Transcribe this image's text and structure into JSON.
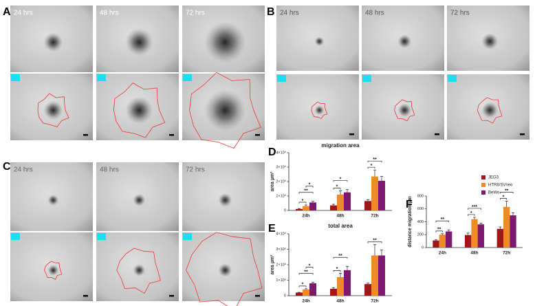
{
  "panels": [
    {
      "letter": "A",
      "labels": [
        "24 hrs",
        "48 hrs",
        "72 hrs"
      ]
    },
    {
      "letter": "B",
      "labels": [
        "24 hrs",
        "48 hrs",
        "72 hrs"
      ]
    },
    {
      "letter": "C",
      "labels": [
        "24 hrs",
        "48 hrs",
        "72 hrs"
      ]
    }
  ],
  "chart_data": [
    {
      "type": "bar",
      "panel": "D",
      "title": "migration area",
      "ylabel": "area µm²",
      "categories": [
        "24h",
        "48h",
        "72h"
      ],
      "ylim": [
        0,
        4000000
      ],
      "yticks": [
        0,
        {
          "value": 1000000,
          "label": "1×10⁶"
        },
        {
          "value": 2000000,
          "label": "2×10⁶"
        },
        {
          "value": 3000000,
          "label": "3×10⁶"
        },
        {
          "value": 4000000,
          "label": "4×10⁶"
        }
      ],
      "series": [
        {
          "color": "#a3171b",
          "values": [
            100000,
            350000,
            650000
          ],
          "errors": [
            30000,
            80000,
            100000
          ]
        },
        {
          "color": "#f08a24",
          "values": [
            300000,
            1100000,
            2350000
          ],
          "errors": [
            80000,
            250000,
            450000
          ]
        },
        {
          "color": "#7d1a70",
          "values": [
            550000,
            1250000,
            2050000
          ],
          "errors": [
            80000,
            200000,
            300000
          ]
        }
      ],
      "annotations": [
        {
          "category": 0,
          "pair": [
            0,
            1
          ],
          "text": "*"
        },
        {
          "category": 0,
          "pair": [
            0,
            2
          ],
          "text": "**"
        },
        {
          "category": 0,
          "pair": [
            1,
            2
          ],
          "text": "*"
        },
        {
          "category": 1,
          "pair": [
            0,
            1
          ],
          "text": "*"
        },
        {
          "category": 1,
          "pair": [
            0,
            2
          ],
          "text": "*"
        },
        {
          "category": 2,
          "pair": [
            0,
            1
          ],
          "text": "*"
        },
        {
          "category": 2,
          "pair": [
            0,
            2
          ],
          "text": "**"
        }
      ]
    },
    {
      "type": "bar",
      "panel": "E",
      "title": "total area",
      "ylabel": "area µm²",
      "categories": [
        "24h",
        "48h",
        "72h"
      ],
      "ylim": [
        0,
        4000000
      ],
      "yticks": [
        0,
        {
          "value": 1000000,
          "label": "1×10⁶"
        },
        {
          "value": 2000000,
          "label": "2×10⁶"
        },
        {
          "value": 3000000,
          "label": "3×10⁶"
        },
        {
          "value": 4000000,
          "label": "4×10⁶"
        }
      ],
      "series": [
        {
          "color": "#a3171b",
          "values": [
            200000,
            450000,
            750000
          ],
          "errors": [
            20000,
            60000,
            60000
          ]
        },
        {
          "color": "#f08a24",
          "values": [
            400000,
            1200000,
            2600000
          ],
          "errors": [
            50000,
            250000,
            700000
          ]
        },
        {
          "color": "#7d1a70",
          "values": [
            800000,
            1650000,
            2600000
          ],
          "errors": [
            60000,
            250000,
            350000
          ]
        }
      ],
      "annotations": [
        {
          "category": 0,
          "pair": [
            0,
            1
          ],
          "text": "*"
        },
        {
          "category": 0,
          "pair": [
            0,
            2
          ],
          "text": "**"
        },
        {
          "category": 0,
          "pair": [
            1,
            2
          ],
          "text": "*"
        },
        {
          "category": 1,
          "pair": [
            0,
            1
          ],
          "text": "*"
        },
        {
          "category": 1,
          "pair": [
            0,
            2
          ],
          "text": "**"
        },
        {
          "category": 2,
          "pair": [
            0,
            2
          ],
          "text": "**"
        }
      ]
    },
    {
      "type": "bar",
      "panel": "F",
      "ylabel": "distance migration µm",
      "categories": [
        "24h",
        "48h",
        "72h"
      ],
      "ylim": [
        0,
        800
      ],
      "yticks": [
        0,
        200,
        400,
        600,
        800
      ],
      "legend": "top",
      "series": [
        {
          "name": "JEG3",
          "color": "#a3171b",
          "values": [
            110,
            195,
            290
          ],
          "errors": [
            10,
            30,
            30
          ]
        },
        {
          "name": "HTR8/SVneo",
          "color": "#f08a24",
          "values": [
            200,
            440,
            630
          ],
          "errors": [
            15,
            30,
            90
          ]
        },
        {
          "name": "BeWo",
          "color": "#7d1a70",
          "values": [
            250,
            360,
            500
          ],
          "errors": [
            25,
            20,
            40
          ]
        }
      ],
      "annotations": [
        {
          "category": 0,
          "pair": [
            0,
            1
          ],
          "text": "**"
        },
        {
          "category": 0,
          "pair": [
            0,
            2
          ],
          "text": "**"
        },
        {
          "category": 1,
          "pair": [
            0,
            1
          ],
          "text": "*"
        },
        {
          "category": 1,
          "pair": [
            0,
            2
          ],
          "text": "***"
        },
        {
          "category": 2,
          "pair": [
            0,
            1
          ],
          "text": "*"
        },
        {
          "category": 2,
          "pair": [
            0,
            2
          ],
          "text": "**"
        }
      ]
    }
  ]
}
